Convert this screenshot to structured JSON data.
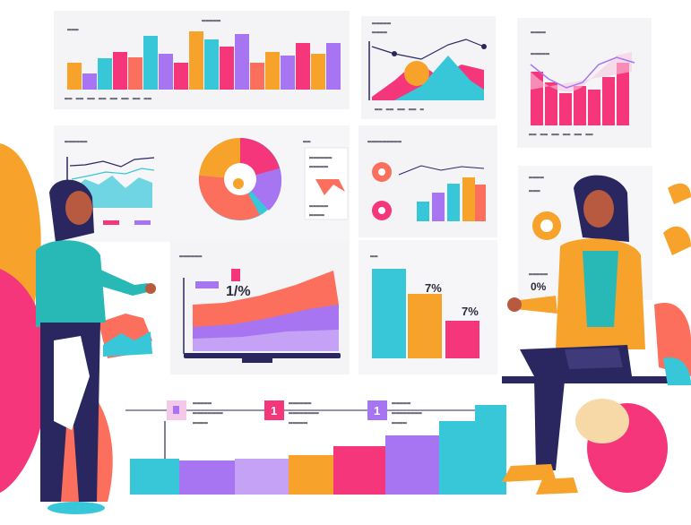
{
  "illustration": {
    "theme": "Two people discussing a wall of analytics dashboards",
    "annotations": {
      "laptop_label": "1/%",
      "bar_card_label": "7%",
      "bar_card_label_2": "7%",
      "right_card_label": "0%"
    },
    "legend_markers": [
      "1",
      "1"
    ]
  },
  "colors": {
    "pink": "#f5367a",
    "magenta": "#e8399a",
    "orange": "#f7a32b",
    "coral": "#fb6f5c",
    "purple": "#a774f2",
    "violet": "#7b5cf2",
    "cyan": "#37c7d9",
    "teal": "#28b9b7",
    "navy": "#2a2660",
    "skin": "#b85a3f",
    "panel": "#f4f4f7"
  }
}
